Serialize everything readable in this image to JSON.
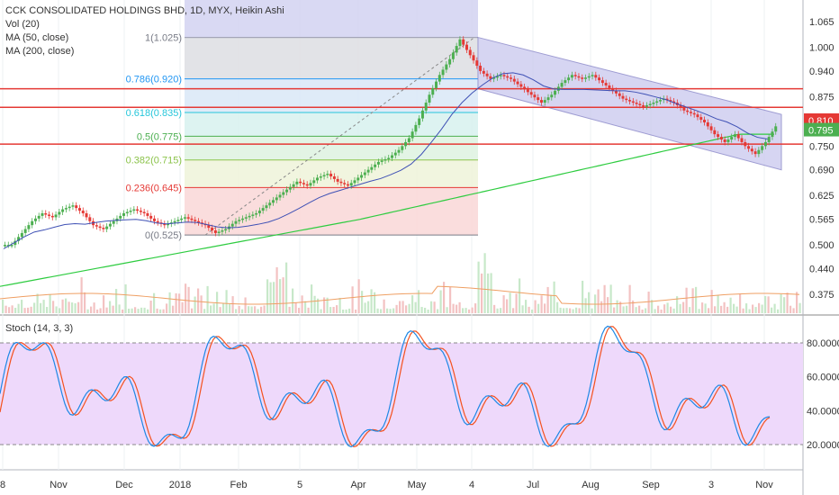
{
  "chart_data": {
    "type": "candlestick",
    "title": "CCK CONSOLIDATED HOLDINGS BHD, 1D, MYX, Heikin Ashi",
    "indicators": [
      "Vol (20)",
      "MA (50, close)",
      "MA (200, close)"
    ],
    "price_axis": {
      "range": [
        0.32,
        1.09
      ],
      "ticks": [
        "1.065",
        "1.000",
        "0.940",
        "0.875",
        "0.810",
        "0.750",
        "0.690",
        "0.625",
        "0.565",
        "0.500",
        "0.440",
        "0.375"
      ]
    },
    "time_axis": {
      "labels": [
        "8",
        "Nov",
        "Dec",
        "2018",
        "Feb",
        "5",
        "Apr",
        "May",
        "4",
        "Jul",
        "Aug",
        "Sep",
        "3",
        "Nov"
      ]
    },
    "last_price_tags": [
      {
        "label": "0.810",
        "value": 0.81,
        "color": "#e53935"
      },
      {
        "label": "0.795",
        "value": 0.795,
        "color": "#4caf50"
      }
    ],
    "horizontal_lines": [
      0.895,
      0.848,
      0.755
    ],
    "fibonacci": {
      "levels": [
        {
          "label": "1(1.025)",
          "value": 1.025,
          "color": "#787b86"
        },
        {
          "label": "0.786(0.920)",
          "value": 0.92,
          "color": "#2196f3"
        },
        {
          "label": "0.618(0.835)",
          "value": 0.835,
          "color": "#26c6da"
        },
        {
          "label": "0.5(0.775)",
          "value": 0.775,
          "color": "#4caf50"
        },
        {
          "label": "0.382(0.715)",
          "value": 0.715,
          "color": "#8bc34a"
        },
        {
          "label": "0.236(0.645)",
          "value": 0.645,
          "color": "#e53935"
        },
        {
          "label": "0(0.525)",
          "value": 0.525,
          "color": "#787b86"
        }
      ]
    },
    "ohlc_approx": [
      0.5,
      0.53,
      0.56,
      0.58,
      0.57,
      0.59,
      0.6,
      0.58,
      0.55,
      0.54,
      0.56,
      0.58,
      0.59,
      0.58,
      0.56,
      0.55,
      0.56,
      0.57,
      0.56,
      0.55,
      0.53,
      0.54,
      0.56,
      0.57,
      0.58,
      0.6,
      0.62,
      0.64,
      0.66,
      0.65,
      0.67,
      0.68,
      0.66,
      0.65,
      0.67,
      0.69,
      0.71,
      0.72,
      0.74,
      0.77,
      0.82,
      0.88,
      0.93,
      0.97,
      1.02,
      0.98,
      0.94,
      0.92,
      0.93,
      0.92,
      0.9,
      0.88,
      0.86,
      0.88,
      0.91,
      0.93,
      0.92,
      0.93,
      0.91,
      0.89,
      0.87,
      0.86,
      0.85,
      0.86,
      0.87,
      0.86,
      0.84,
      0.83,
      0.81,
      0.78,
      0.76,
      0.78,
      0.75,
      0.73,
      0.76,
      0.8
    ],
    "stoch": {
      "label": "Stoch (14, 3, 3)",
      "ticks": [
        "80.0000",
        "60.0000",
        "40.0000",
        "20.0000"
      ],
      "range": [
        0,
        100
      ],
      "bands": [
        20,
        80
      ]
    }
  }
}
